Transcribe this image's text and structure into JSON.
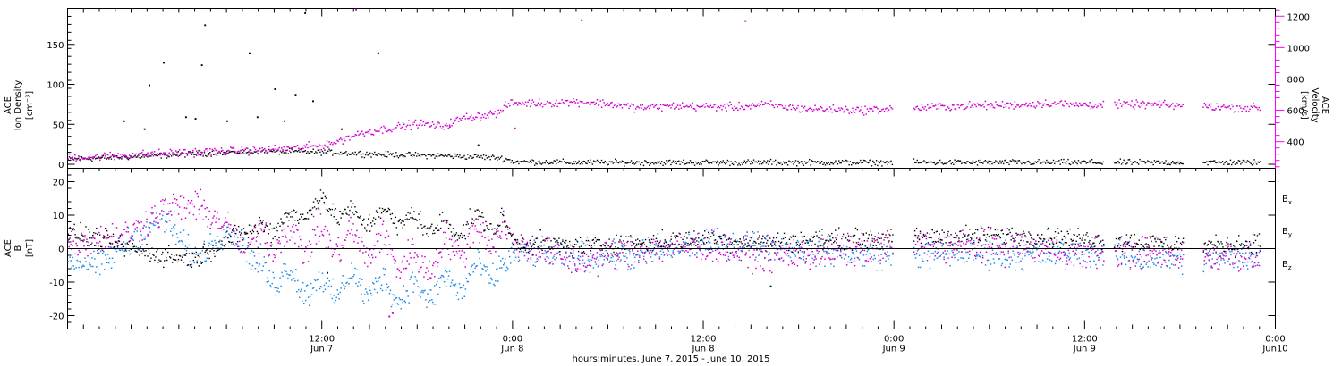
{
  "colors": {
    "density": "#000000",
    "velocity": "#d000d0",
    "bx": "#000000",
    "by": "#1e8ce6",
    "bz": "#d000d0",
    "right_axis": "#ff00ff"
  },
  "chart_data": [
    {
      "type": "scatter",
      "panel": "top",
      "ylabel_left": [
        "ACE",
        "Ion Density",
        "[cm⁻³]"
      ],
      "ylabel_right": [
        "ACE",
        "Velocity",
        "[km/s]"
      ],
      "ylim_left": [
        -5,
        195
      ],
      "ylim_right": [
        230,
        1250
      ],
      "yticks_left": [
        0,
        50,
        100,
        150
      ],
      "yticks_right": [
        400,
        600,
        800,
        1000,
        1200
      ],
      "xlim_hours": [
        -16,
        60
      ],
      "data_gaps_hours": [
        [
          35.9,
          37.2
        ],
        [
          54.2,
          55.4
        ],
        [
          49.2,
          49.8
        ]
      ],
      "series": [
        {
          "key": "density",
          "x_hours": [
            -16,
            -12,
            -8,
            -4,
            0,
            4,
            8,
            10,
            11.5,
            12,
            16,
            20,
            24,
            28,
            32,
            36,
            40,
            44,
            48,
            52,
            56,
            59
          ],
          "values": [
            7,
            10,
            14,
            17,
            16,
            13,
            11,
            10,
            8,
            4,
            3,
            3,
            3,
            3,
            3,
            3,
            3,
            3,
            3,
            3,
            3,
            3
          ],
          "spread": 3,
          "outliers": [
            [
              -12.5,
              55
            ],
            [
              -11.2,
              45
            ],
            [
              -10.9,
              100
            ],
            [
              -10,
              128
            ],
            [
              -8.6,
              60
            ],
            [
              -8,
              58
            ],
            [
              -7.6,
              125
            ],
            [
              -7.4,
              175
            ],
            [
              -6,
              55
            ],
            [
              -4.6,
              140
            ],
            [
              -4.1,
              60
            ],
            [
              -3,
              95
            ],
            [
              -2.4,
              55
            ],
            [
              -1.7,
              88
            ],
            [
              -1.1,
              190
            ],
            [
              -0.6,
              80
            ],
            [
              1.2,
              45
            ],
            [
              3.5,
              140
            ],
            [
              9.8,
              25
            ]
          ]
        },
        {
          "key": "velocity",
          "x_hours": [
            -16,
            -12,
            -8,
            -4,
            -2,
            0,
            1,
            2.5,
            4,
            6,
            7.5,
            9,
            10,
            11.2,
            11.6,
            12,
            14,
            16,
            18,
            20,
            22,
            26,
            28,
            30,
            34,
            40,
            44,
            46,
            47,
            52,
            58,
            59
          ],
          "values": [
            300,
            320,
            338,
            350,
            360,
            380,
            410,
            460,
            485,
            520,
            500,
            560,
            570,
            590,
            640,
            650,
            650,
            660,
            645,
            620,
            630,
            625,
            640,
            615,
            605,
            630,
            640,
            650,
            640,
            640,
            620,
            620
          ],
          "spread": 22,
          "outliers": [
            [
              2.1,
              1250
            ],
            [
              16.3,
              1180
            ],
            [
              26.6,
              1175
            ],
            [
              12.1,
              490
            ],
            [
              8,
              500
            ]
          ]
        }
      ]
    },
    {
      "type": "scatter",
      "panel": "bottom",
      "ylabel_left": [
        "ACE",
        "B",
        "[nT]"
      ],
      "ylim_left": [
        -24,
        24
      ],
      "yticks_left": [
        -20,
        -10,
        0,
        10,
        20
      ],
      "zero_line": true,
      "xlim_hours": [
        -16,
        60
      ],
      "data_gaps_hours": [
        [
          35.9,
          37.2
        ],
        [
          54.2,
          55.4
        ],
        [
          49.2,
          49.8
        ]
      ],
      "legend": [
        "Bx",
        "By",
        "Bz"
      ],
      "series": [
        {
          "key": "bx",
          "x_hours": [
            -16,
            -14,
            -12,
            -10,
            -8,
            -6,
            -5,
            -4,
            -2,
            0,
            2,
            4,
            6,
            8,
            10,
            11.5,
            12,
            16,
            20,
            24,
            28,
            32,
            36,
            40,
            44,
            48,
            52,
            56,
            59
          ],
          "values": [
            5,
            3,
            0,
            -2,
            -3,
            3,
            5,
            6,
            9,
            14,
            9,
            10,
            8,
            6,
            8,
            8,
            2,
            1,
            2,
            3,
            2,
            3,
            3,
            4,
            4,
            3,
            2,
            1,
            2
          ],
          "spread": 2.5,
          "outliers": [
            [
              0.3,
              -7
            ],
            [
              28.2,
              -11
            ]
          ]
        },
        {
          "key": "by",
          "x_hours": [
            -16,
            -14,
            -12,
            -10,
            -8,
            -6,
            -5,
            -4,
            -2,
            0,
            2,
            4,
            6,
            8,
            10,
            11.5,
            12,
            16,
            20,
            24,
            28,
            32,
            36,
            40,
            44,
            48,
            52,
            56,
            59
          ],
          "values": [
            -3,
            -5,
            3,
            9,
            -3,
            6,
            2,
            -6,
            -9,
            -12,
            -10,
            -12,
            -13,
            -11,
            -7,
            -5,
            -1,
            -2,
            -2,
            2,
            1,
            -1,
            -2,
            -1,
            -2,
            -1,
            -3,
            -3,
            -2
          ],
          "spread": 3.5,
          "outliers": []
        },
        {
          "key": "bz",
          "x_hours": [
            -16,
            -14,
            -12,
            -10,
            -8,
            -6,
            -5,
            -4,
            -2,
            0,
            2,
            4,
            6,
            8,
            10,
            11.5,
            12,
            16,
            20,
            24,
            28,
            32,
            36,
            40,
            44,
            48,
            52,
            56,
            59
          ],
          "values": [
            2,
            3,
            5,
            12,
            13,
            7,
            0,
            4,
            3,
            3,
            2,
            0,
            -5,
            0,
            4,
            6,
            2,
            -4,
            0,
            1,
            -2,
            -1,
            1,
            1,
            1,
            -1,
            -1,
            -2,
            -2
          ],
          "spread": 4,
          "outliers": [
            [
              4.2,
              -20
            ],
            [
              4.4,
              -19
            ]
          ]
        }
      ]
    }
  ],
  "x_axis": {
    "ticks": [
      {
        "h": 0,
        "label": "12:00",
        "sub": "Jun 7"
      },
      {
        "h": 12,
        "label": "0:00",
        "sub": "Jun 8"
      },
      {
        "h": 24,
        "label": "12:00",
        "sub": "Jun 8"
      },
      {
        "h": 36,
        "label": "0:00",
        "sub": "Jun 9"
      },
      {
        "h": 48,
        "label": "12:00",
        "sub": "Jun 9"
      },
      {
        "h": 60,
        "label": "0:00",
        "sub": "Jun10"
      }
    ],
    "xlabel": "hours:minutes, June  7, 2015 - June 10, 2015"
  },
  "legend_labels": {
    "bx": "B",
    "bx_sub": "x",
    "by": "B",
    "by_sub": "y",
    "bz": "B",
    "bz_sub": "z"
  }
}
